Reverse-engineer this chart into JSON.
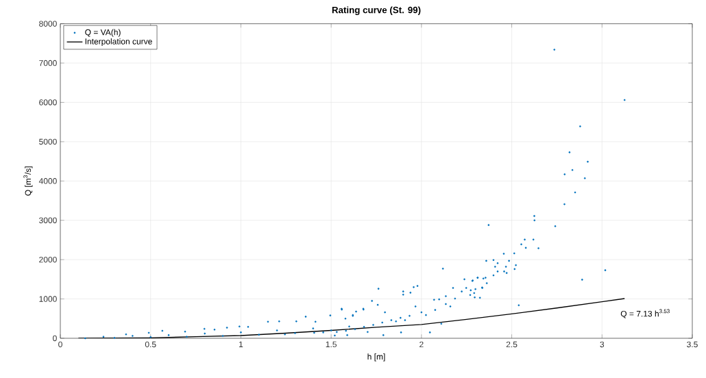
{
  "chart_data": {
    "type": "scatter",
    "title": "Rating curve (St. 99)",
    "xlabel": "h [m]",
    "ylabel": "Q [m$^{3}$/s]",
    "xlim": [
      0,
      3.5
    ],
    "ylim": [
      0,
      8000
    ],
    "xticks": [
      0,
      0.5,
      1,
      1.5,
      2,
      2.5,
      3,
      3.5
    ],
    "yticks": [
      0,
      1000,
      2000,
      3000,
      4000,
      5000,
      6000,
      7000,
      8000
    ],
    "grid": true,
    "legend": "top left",
    "series": [
      {
        "name": "Q = VA(h)",
        "marker": "circle",
        "color": "#0072bd",
        "x": [
          2.736,
          3.125,
          2.879,
          2.82,
          2.921,
          2.836,
          2.793,
          2.905,
          2.851,
          2.792,
          2.625,
          2.626,
          2.372,
          2.741,
          2.553,
          2.572,
          2.578,
          2.62,
          2.648,
          2.456,
          2.514,
          2.359,
          2.399,
          2.485,
          2.422,
          2.523,
          2.468,
          2.408,
          3.018,
          2.516,
          2.422,
          2.458,
          2.472,
          2.399,
          2.89,
          2.311,
          2.355,
          2.284,
          2.362,
          2.336,
          2.299,
          2.292,
          2.295,
          2.324,
          2.539,
          2.119,
          1.762,
          1.978,
          1.957,
          1.899,
          1.899,
          1.939,
          1.726,
          1.758,
          1.559,
          1.638,
          1.679,
          1.62,
          1.579,
          1.798,
          1.967,
          2.07,
          2.098,
          2.135,
          2.186,
          2.238,
          2.282,
          2.311,
          2.343,
          2.175,
          2.223,
          2.27,
          2.337,
          2.11,
          2.047,
          1.887,
          1.789,
          2.076,
          2.025,
          2.0,
          1.934,
          1.884,
          1.833,
          1.783,
          1.733,
          1.682,
          1.632,
          1.582,
          1.531,
          1.456,
          1.406,
          1.909,
          1.859,
          2.135,
          2.16,
          2.248,
          2.273,
          0.138,
          0.239,
          0.364,
          0.49,
          0.565,
          0.691,
          0.798,
          0.854,
          0.923,
          0.992,
          1.04,
          1.15,
          1.212,
          1.307,
          1.359,
          1.413,
          1.495,
          1.558,
          1.62,
          1.678,
          1.702,
          1.589,
          1.52,
          1.244,
          0.3,
          0.5,
          0.7,
          0.9,
          1.1,
          1.3,
          1.5,
          0.4,
          0.6,
          0.8,
          1.0,
          1.2,
          1.4,
          1.6
        ],
        "values": [
          7340,
          6060,
          5390,
          4730,
          4490,
          4280,
          4170,
          4070,
          3710,
          3410,
          3110,
          3000,
          2880,
          2850,
          2390,
          2510,
          2300,
          2510,
          2290,
          2150,
          2160,
          1970,
          1990,
          1970,
          1910,
          1860,
          1820,
          1820,
          1730,
          1760,
          1700,
          1700,
          1660,
          1600,
          1490,
          1540,
          1540,
          1470,
          1400,
          1290,
          1250,
          1150,
          1040,
          1030,
          840,
          1770,
          1260,
          1330,
          1300,
          1190,
          1110,
          1160,
          950,
          850,
          730,
          680,
          730,
          570,
          500,
          660,
          810,
          980,
          990,
          1070,
          1010,
          1500,
          1460,
          1540,
          1520,
          1280,
          1190,
          1100,
          1280,
          370,
          150,
          150,
          80,
          720,
          590,
          660,
          570,
          520,
          460,
          400,
          340,
          290,
          230,
          190,
          160,
          150,
          140,
          460,
          430,
          870,
          810,
          1280,
          1220,
          0,
          40,
          100,
          140,
          190,
          170,
          240,
          220,
          270,
          300,
          290,
          420,
          430,
          430,
          550,
          420,
          580,
          750,
          590,
          750,
          160,
          80,
          70,
          100,
          10,
          30,
          40,
          60,
          90,
          130,
          200,
          60,
          80,
          120,
          150,
          200,
          250,
          300
        ]
      },
      {
        "name": "Interpolation curve",
        "type": "line",
        "marker": "none",
        "line_style": "solid",
        "color": "#000000",
        "x": [
          0.1,
          0.5,
          0.75,
          1.0,
          1.25,
          1.5,
          1.75,
          2.0,
          2.25,
          2.5,
          2.75,
          3.0,
          3.125
        ],
        "values": [
          0,
          10,
          40,
          70,
          130,
          200,
          280,
          350,
          480,
          620,
          770,
          930,
          1010
        ]
      }
    ],
    "annotations": [
      {
        "text": "Q = 7.13 h$^{3.53}$",
        "x": 3.125,
        "y": 1006
      }
    ]
  }
}
